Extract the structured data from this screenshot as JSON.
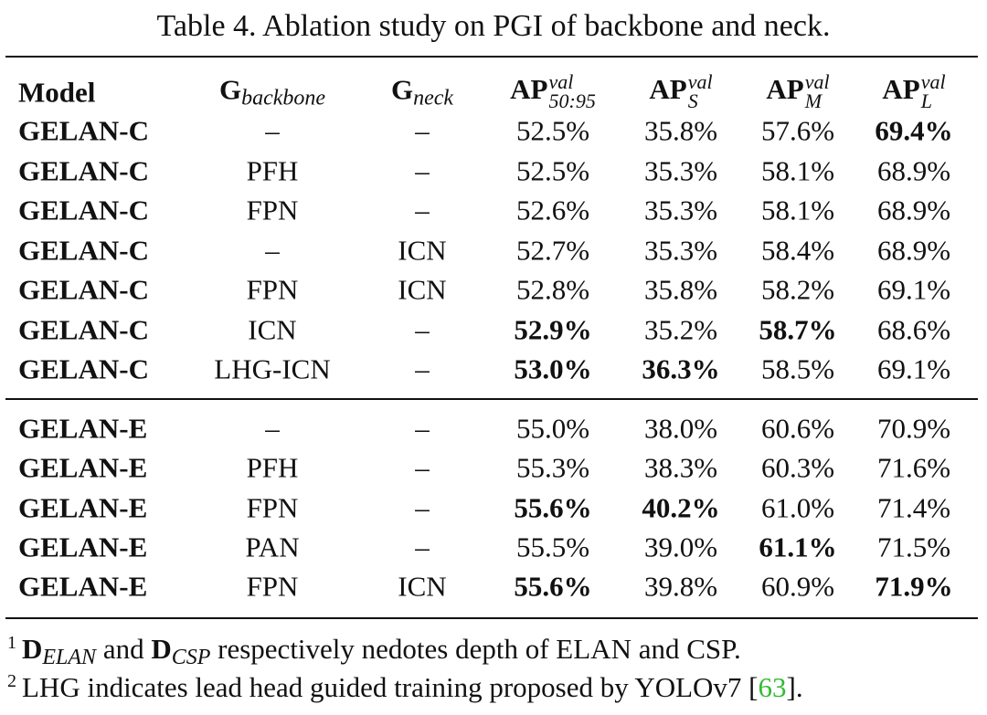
{
  "caption": "Table 4. Ablation study on PGI of backbone and neck.",
  "table": {
    "header": [
      {
        "base": "Model"
      },
      {
        "base": "G",
        "sub": "backbone"
      },
      {
        "base": "G",
        "sub": "neck"
      },
      {
        "base": "AP",
        "sup": "val",
        "sub": "50:95"
      },
      {
        "base": "AP",
        "sup": "val",
        "sub": "S"
      },
      {
        "base": "AP",
        "sup": "val",
        "sub": "M"
      },
      {
        "base": "AP",
        "sup": "val",
        "sub": "L"
      }
    ],
    "bold_columns": [
      0
    ],
    "groups": [
      {
        "rows": [
          {
            "cells": [
              "GELAN-C",
              "–",
              "–",
              "52.5%",
              "35.8%",
              "57.6%",
              "69.4%"
            ],
            "bold": [
              6
            ]
          },
          {
            "cells": [
              "GELAN-C",
              "PFH",
              "–",
              "52.5%",
              "35.3%",
              "58.1%",
              "68.9%"
            ],
            "bold": []
          },
          {
            "cells": [
              "GELAN-C",
              "FPN",
              "–",
              "52.6%",
              "35.3%",
              "58.1%",
              "68.9%"
            ],
            "bold": []
          },
          {
            "cells": [
              "GELAN-C",
              "–",
              "ICN",
              "52.7%",
              "35.3%",
              "58.4%",
              "68.9%"
            ],
            "bold": []
          },
          {
            "cells": [
              "GELAN-C",
              "FPN",
              "ICN",
              "52.8%",
              "35.8%",
              "58.2%",
              "69.1%"
            ],
            "bold": []
          },
          {
            "cells": [
              "GELAN-C",
              "ICN",
              "–",
              "52.9%",
              "35.2%",
              "58.7%",
              "68.6%"
            ],
            "bold": [
              3,
              5
            ]
          },
          {
            "cells": [
              "GELAN-C",
              "LHG-ICN",
              "–",
              "53.0%",
              "36.3%",
              "58.5%",
              "69.1%"
            ],
            "bold": [
              3,
              4
            ]
          }
        ]
      },
      {
        "rows": [
          {
            "cells": [
              "GELAN-E",
              "–",
              "–",
              "55.0%",
              "38.0%",
              "60.6%",
              "70.9%"
            ],
            "bold": []
          },
          {
            "cells": [
              "GELAN-E",
              "PFH",
              "–",
              "55.3%",
              "38.3%",
              "60.3%",
              "71.6%"
            ],
            "bold": []
          },
          {
            "cells": [
              "GELAN-E",
              "FPN",
              "–",
              "55.6%",
              "40.2%",
              "61.0%",
              "71.4%"
            ],
            "bold": [
              3,
              4
            ]
          },
          {
            "cells": [
              "GELAN-E",
              "PAN",
              "–",
              "55.5%",
              "39.0%",
              "61.1%",
              "71.5%"
            ],
            "bold": [
              5
            ]
          },
          {
            "cells": [
              "GELAN-E",
              "FPN",
              "ICN",
              "55.6%",
              "39.8%",
              "60.9%",
              "71.9%"
            ],
            "bold": [
              3,
              6
            ]
          }
        ]
      }
    ]
  },
  "footnotes": [
    {
      "mark": "1",
      "parts": [
        {
          "text": "D",
          "style": "bold"
        },
        {
          "text": "ELAN",
          "style": "sub-italic"
        },
        {
          "text": " and "
        },
        {
          "text": "D",
          "style": "bold"
        },
        {
          "text": "CSP",
          "style": "sub-italic"
        },
        {
          "text": " respectively nedotes depth of ELAN and CSP."
        }
      ]
    },
    {
      "mark": "2",
      "parts": [
        {
          "text": "LHG indicates lead head guided training proposed by YOLOv7 ["
        },
        {
          "text": "63",
          "style": "link"
        },
        {
          "text": "]."
        }
      ]
    }
  ]
}
